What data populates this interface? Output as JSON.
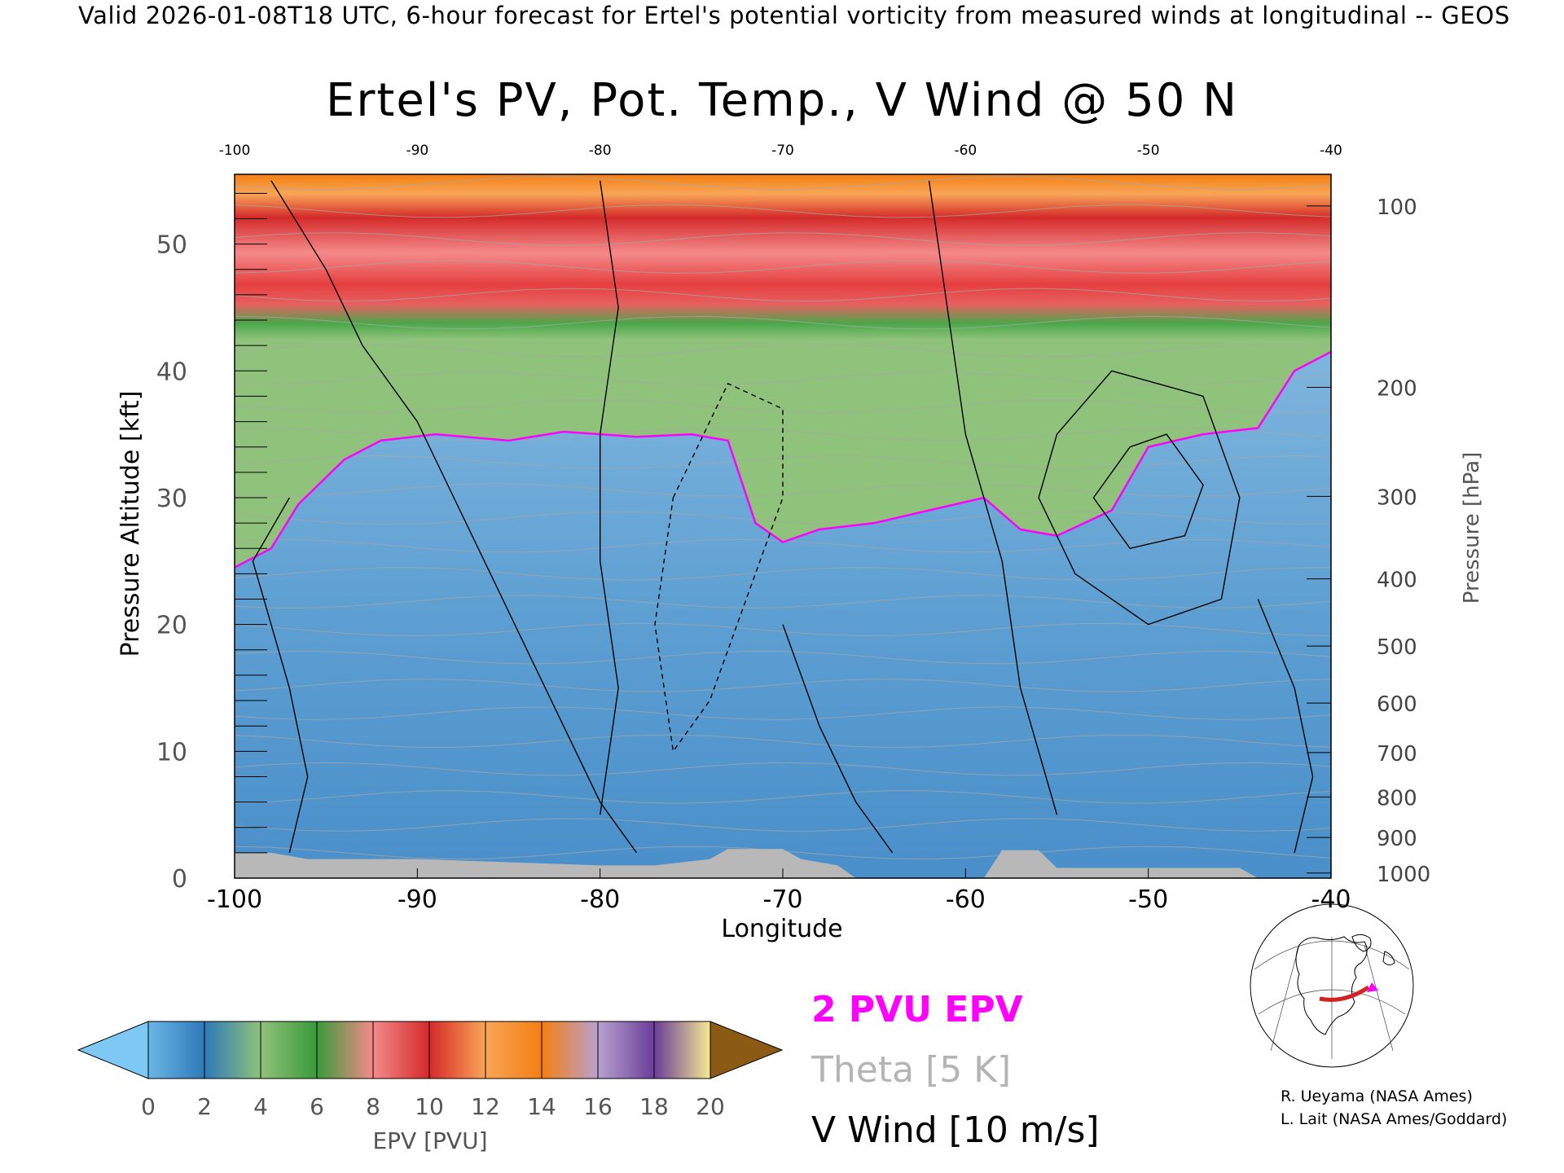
{
  "header": {
    "text": "Valid 2026-01-08T18 UTC, 6-hour forecast for Ertel's potential vorticity from measured winds at longitudinal -- GEOS"
  },
  "chart_data": {
    "type": "heatmap",
    "title": "Ertel's PV, Pot. Temp., V Wind @ 50 N",
    "xlabel": "Longitude",
    "ylabel": "Pressure Altitude [kft]",
    "y2label": "Pressure [hPa]",
    "xlim": [
      -100,
      -40
    ],
    "ylim": [
      0,
      55.5
    ],
    "x_ticks": [
      "-100",
      "-90",
      "-80",
      "-70",
      "-60",
      "-50",
      "-40"
    ],
    "x_top_ticks": [
      "-100",
      "-90",
      "-80",
      "-70",
      "-60",
      "-50",
      "-40"
    ],
    "y_ticks": [
      "0",
      "10",
      "20",
      "30",
      "40",
      "50"
    ],
    "pressure_ticks": [
      {
        "label": "100",
        "kft": 53.0
      },
      {
        "label": "200",
        "kft": 38.7
      },
      {
        "label": "300",
        "kft": 30.1
      },
      {
        "label": "400",
        "kft": 23.6
      },
      {
        "label": "500",
        "kft": 18.3
      },
      {
        "label": "600",
        "kft": 13.8
      },
      {
        "label": "700",
        "kft": 9.9
      },
      {
        "label": "800",
        "kft": 6.4
      },
      {
        "label": "900",
        "kft": 3.2
      },
      {
        "label": "1000",
        "kft": 0.4
      }
    ],
    "tropopause_2pvu_kft": [
      {
        "lon": -100,
        "kft": 24.5
      },
      {
        "lon": -98,
        "kft": 26
      },
      {
        "lon": -96.5,
        "kft": 29.5
      },
      {
        "lon": -94,
        "kft": 33
      },
      {
        "lon": -92,
        "kft": 34.5
      },
      {
        "lon": -89,
        "kft": 35
      },
      {
        "lon": -85,
        "kft": 34.5
      },
      {
        "lon": -82,
        "kft": 35.2
      },
      {
        "lon": -78,
        "kft": 34.8
      },
      {
        "lon": -75,
        "kft": 35
      },
      {
        "lon": -73,
        "kft": 34.5
      },
      {
        "lon": -71.5,
        "kft": 28
      },
      {
        "lon": -70,
        "kft": 26.5
      },
      {
        "lon": -68,
        "kft": 27.5
      },
      {
        "lon": -65,
        "kft": 28
      },
      {
        "lon": -62,
        "kft": 29
      },
      {
        "lon": -59,
        "kft": 30
      },
      {
        "lon": -57,
        "kft": 27.5
      },
      {
        "lon": -55,
        "kft": 27
      },
      {
        "lon": -52,
        "kft": 29
      },
      {
        "lon": -50,
        "kft": 34
      },
      {
        "lon": -47,
        "kft": 35
      },
      {
        "lon": -44,
        "kft": 35.5
      },
      {
        "lon": -42,
        "kft": 40
      },
      {
        "lon": -40,
        "kft": 41.5
      }
    ],
    "surface_kft": [
      {
        "lon": -100,
        "kft": 2.0
      },
      {
        "lon": -98,
        "kft": 2.0
      },
      {
        "lon": -96,
        "kft": 1.5
      },
      {
        "lon": -90,
        "kft": 1.5
      },
      {
        "lon": -84,
        "kft": 1.2
      },
      {
        "lon": -80,
        "kft": 1.0
      },
      {
        "lon": -77,
        "kft": 1.0
      },
      {
        "lon": -74,
        "kft": 1.5
      },
      {
        "lon": -73,
        "kft": 2.3
      },
      {
        "lon": -70,
        "kft": 2.3
      },
      {
        "lon": -69,
        "kft": 1.5
      },
      {
        "lon": -67,
        "kft": 1.0
      },
      {
        "lon": -66,
        "kft": 0
      },
      {
        "lon": -59,
        "kft": 0
      },
      {
        "lon": -58,
        "kft": 2.2
      },
      {
        "lon": -56,
        "kft": 2.2
      },
      {
        "lon": -55,
        "kft": 0.8
      },
      {
        "lon": -45,
        "kft": 0.8
      },
      {
        "lon": -44,
        "kft": 0
      },
      {
        "lon": -40,
        "kft": 0
      }
    ],
    "colorbar": {
      "label": "EPV [PVU]",
      "ticks": [
        "0",
        "2",
        "4",
        "6",
        "8",
        "10",
        "12",
        "14",
        "16",
        "18",
        "20"
      ],
      "colors": [
        "#6bb6e6",
        "#2e79b8",
        "#8fc27a",
        "#3a9a3a",
        "#f58a8a",
        "#d42a2a",
        "#f9a557",
        "#f47f12",
        "#b8a1cf",
        "#6a3d9a",
        "#f5e990"
      ],
      "under_color": "#7ec8f5",
      "over_color": "#8b5a14"
    },
    "legend": [
      {
        "label": "2 PVU EPV",
        "color": "#ff00ff"
      },
      {
        "label": "Theta [5 K]",
        "color": "#b4b4b4"
      },
      {
        "label": "V Wind [10 m/s]",
        "color": "#000000"
      }
    ]
  },
  "credits": {
    "line1": "R. Ueyama (NASA Ames)",
    "line2": "L. Lait (NASA Ames/Goddard)"
  }
}
